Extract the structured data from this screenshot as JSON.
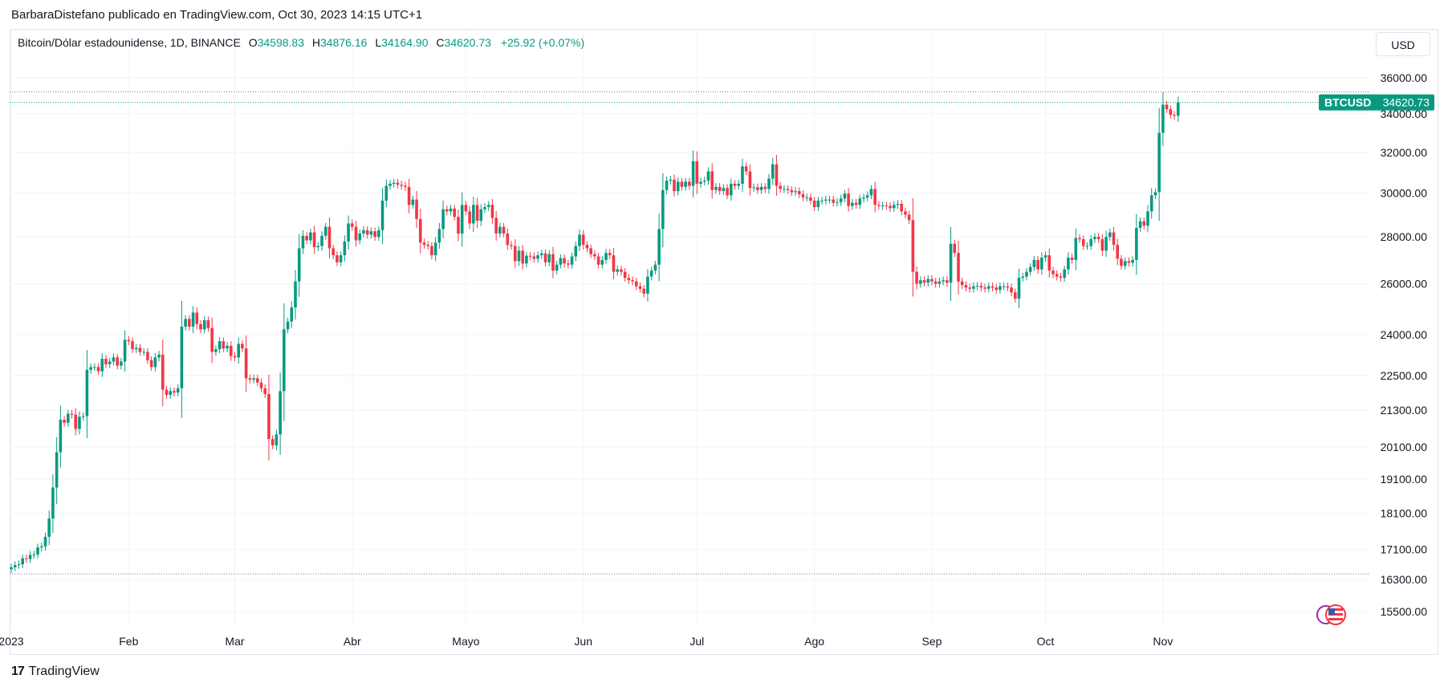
{
  "header": {
    "published_line": "BarbaraDistefano publicado en TradingView.com, Oct 30, 2023 14:15 UTC+1"
  },
  "legend": {
    "symbol": "Bitcoin/Dólar estadounidense, 1D, BINANCE",
    "open_label": "O",
    "open": "34598.83",
    "high_label": "H",
    "high": "34876.16",
    "low_label": "L",
    "low": "34164.90",
    "close_label": "C",
    "close": "34620.73",
    "change": "+25.92 (+0.07%)"
  },
  "currency_button": "USD",
  "price_tag": {
    "ticker": "BTCUSD",
    "price": "34620.73"
  },
  "footer": {
    "brand": "TradingView",
    "logo_glyph": "17"
  },
  "colors": {
    "up": "#089981",
    "down": "#f23645",
    "grid": "#f0f3fa",
    "text": "#131722"
  },
  "chart_data": {
    "type": "candlestick",
    "title": "Bitcoin/Dólar estadounidense, 1D, BINANCE",
    "scale": "log",
    "ylim": [
      15150,
      37150
    ],
    "y_ticks": [
      36000,
      34000,
      32000,
      30000,
      28000,
      26000,
      24000,
      22500,
      21300,
      20100,
      19100,
      18100,
      17100,
      16300,
      15500
    ],
    "y_tick_labels": [
      "36000.00",
      "34000.00",
      "32000.00",
      "30000.00",
      "28000.00",
      "26000.00",
      "24000.00",
      "22500.00",
      "21300.00",
      "20100.00",
      "19100.00",
      "18100.00",
      "17100.00",
      "16300.00",
      "15500.00"
    ],
    "x_ticks": [
      {
        "label": "2023",
        "day": 0
      },
      {
        "label": "Feb",
        "day": 31
      },
      {
        "label": "Mar",
        "day": 59
      },
      {
        "label": "Abr",
        "day": 90
      },
      {
        "label": "Mayo",
        "day": 120
      },
      {
        "label": "Jun",
        "day": 151
      },
      {
        "label": "Jul",
        "day": 181
      },
      {
        "label": "Ago",
        "day": 212
      },
      {
        "label": "Sep",
        "day": 243
      },
      {
        "label": "Oct",
        "day": 273
      },
      {
        "label": "Nov",
        "day": 304
      }
    ],
    "reference_lines": [
      35200,
      16450
    ],
    "last_price": 34620.73,
    "closes": [
      16620,
      16680,
      16700,
      16860,
      16840,
      16950,
      16960,
      17150,
      17180,
      17440,
      17950,
      18850,
      19930,
      20980,
      20880,
      21180,
      21150,
      20680,
      21080,
      21100,
      22700,
      22800,
      22800,
      22650,
      23100,
      22900,
      23000,
      23150,
      22850,
      23000,
      23800,
      23750,
      23450,
      23500,
      23350,
      23350,
      23050,
      22800,
      23150,
      23250,
      22000,
      21820,
      21950,
      21900,
      22050,
      24300,
      24600,
      24300,
      24850,
      24400,
      24200,
      24550,
      24250,
      23350,
      23450,
      23750,
      23480,
      23580,
      23200,
      23150,
      23650,
      23480,
      22400,
      22350,
      22400,
      22250,
      22050,
      21850,
      20350,
      20150,
      20500,
      21950,
      24200,
      24500,
      25050,
      26100,
      27500,
      28050,
      27850,
      28200,
      27550,
      27600,
      28050,
      28450,
      27500,
      27200,
      26900,
      27200,
      27800,
      28600,
      28450,
      27850,
      28150,
      28300,
      28100,
      28250,
      28000,
      28300,
      29650,
      30350,
      30450,
      30500,
      30400,
      30350,
      30300,
      29450,
      29700,
      28800,
      27750,
      27650,
      27600,
      27200,
      27750,
      28350,
      29250,
      29150,
      29280,
      28900,
      28150,
      29450,
      29150,
      28600,
      29450,
      28720,
      29250,
      29350,
      29450,
      28850,
      28150,
      28450,
      28150,
      27650,
      27600,
      26950,
      27400,
      26850,
      27180,
      27150,
      27050,
      27200,
      27280,
      26900,
      27250,
      26550,
      26800,
      27080,
      26850,
      26800,
      27150,
      27600,
      28100,
      27650,
      27500,
      27250,
      27150,
      26800,
      27000,
      27300,
      27200,
      26500,
      26600,
      26500,
      26250,
      26150,
      26100,
      25900,
      25800,
      25600,
      26300,
      26550,
      26800,
      28350,
      30150,
      30600,
      30650,
      30100,
      30550,
      30300,
      30550,
      30350,
      31550,
      30450,
      30550,
      30600,
      31050,
      30150,
      30300,
      30100,
      30250,
      29900,
      30450,
      30350,
      30450,
      31300,
      31050,
      30250,
      30280,
      30150,
      30300,
      30200,
      30700,
      31400,
      30350,
      30200,
      30200,
      30150,
      30050,
      30100,
      29950,
      29800,
      29800,
      29650,
      29350,
      29650,
      29650,
      29700,
      29700,
      29550,
      29580,
      29750,
      29980,
      29400,
      29550,
      29450,
      29750,
      29800,
      29900,
      30200,
      29450,
      29400,
      29420,
      29400,
      29300,
      29450,
      29500,
      29150,
      29000,
      28750,
      26500,
      26000,
      26150,
      26050,
      26200,
      26100,
      26000,
      26100,
      26150,
      26050,
      27700,
      27300,
      26100,
      25950,
      25850,
      25800,
      25900,
      25920,
      25850,
      25800,
      25900,
      25850,
      25750,
      25900,
      25900,
      25850,
      25650,
      25400,
      26250,
      26300,
      26500,
      26700,
      27000,
      26600,
      27100,
      27200,
      26550,
      26400,
      26300,
      26250,
      26600,
      27100,
      27000,
      27950,
      27900,
      27600,
      27600,
      27900,
      28000,
      27900,
      27400,
      28000,
      28200,
      27650,
      27050,
      26750,
      26950,
      26880,
      27000,
      28400,
      28700,
      28500,
      29150,
      29900,
      30050,
      33000,
      34500,
      34250,
      33950,
      33900,
      34620
    ]
  }
}
